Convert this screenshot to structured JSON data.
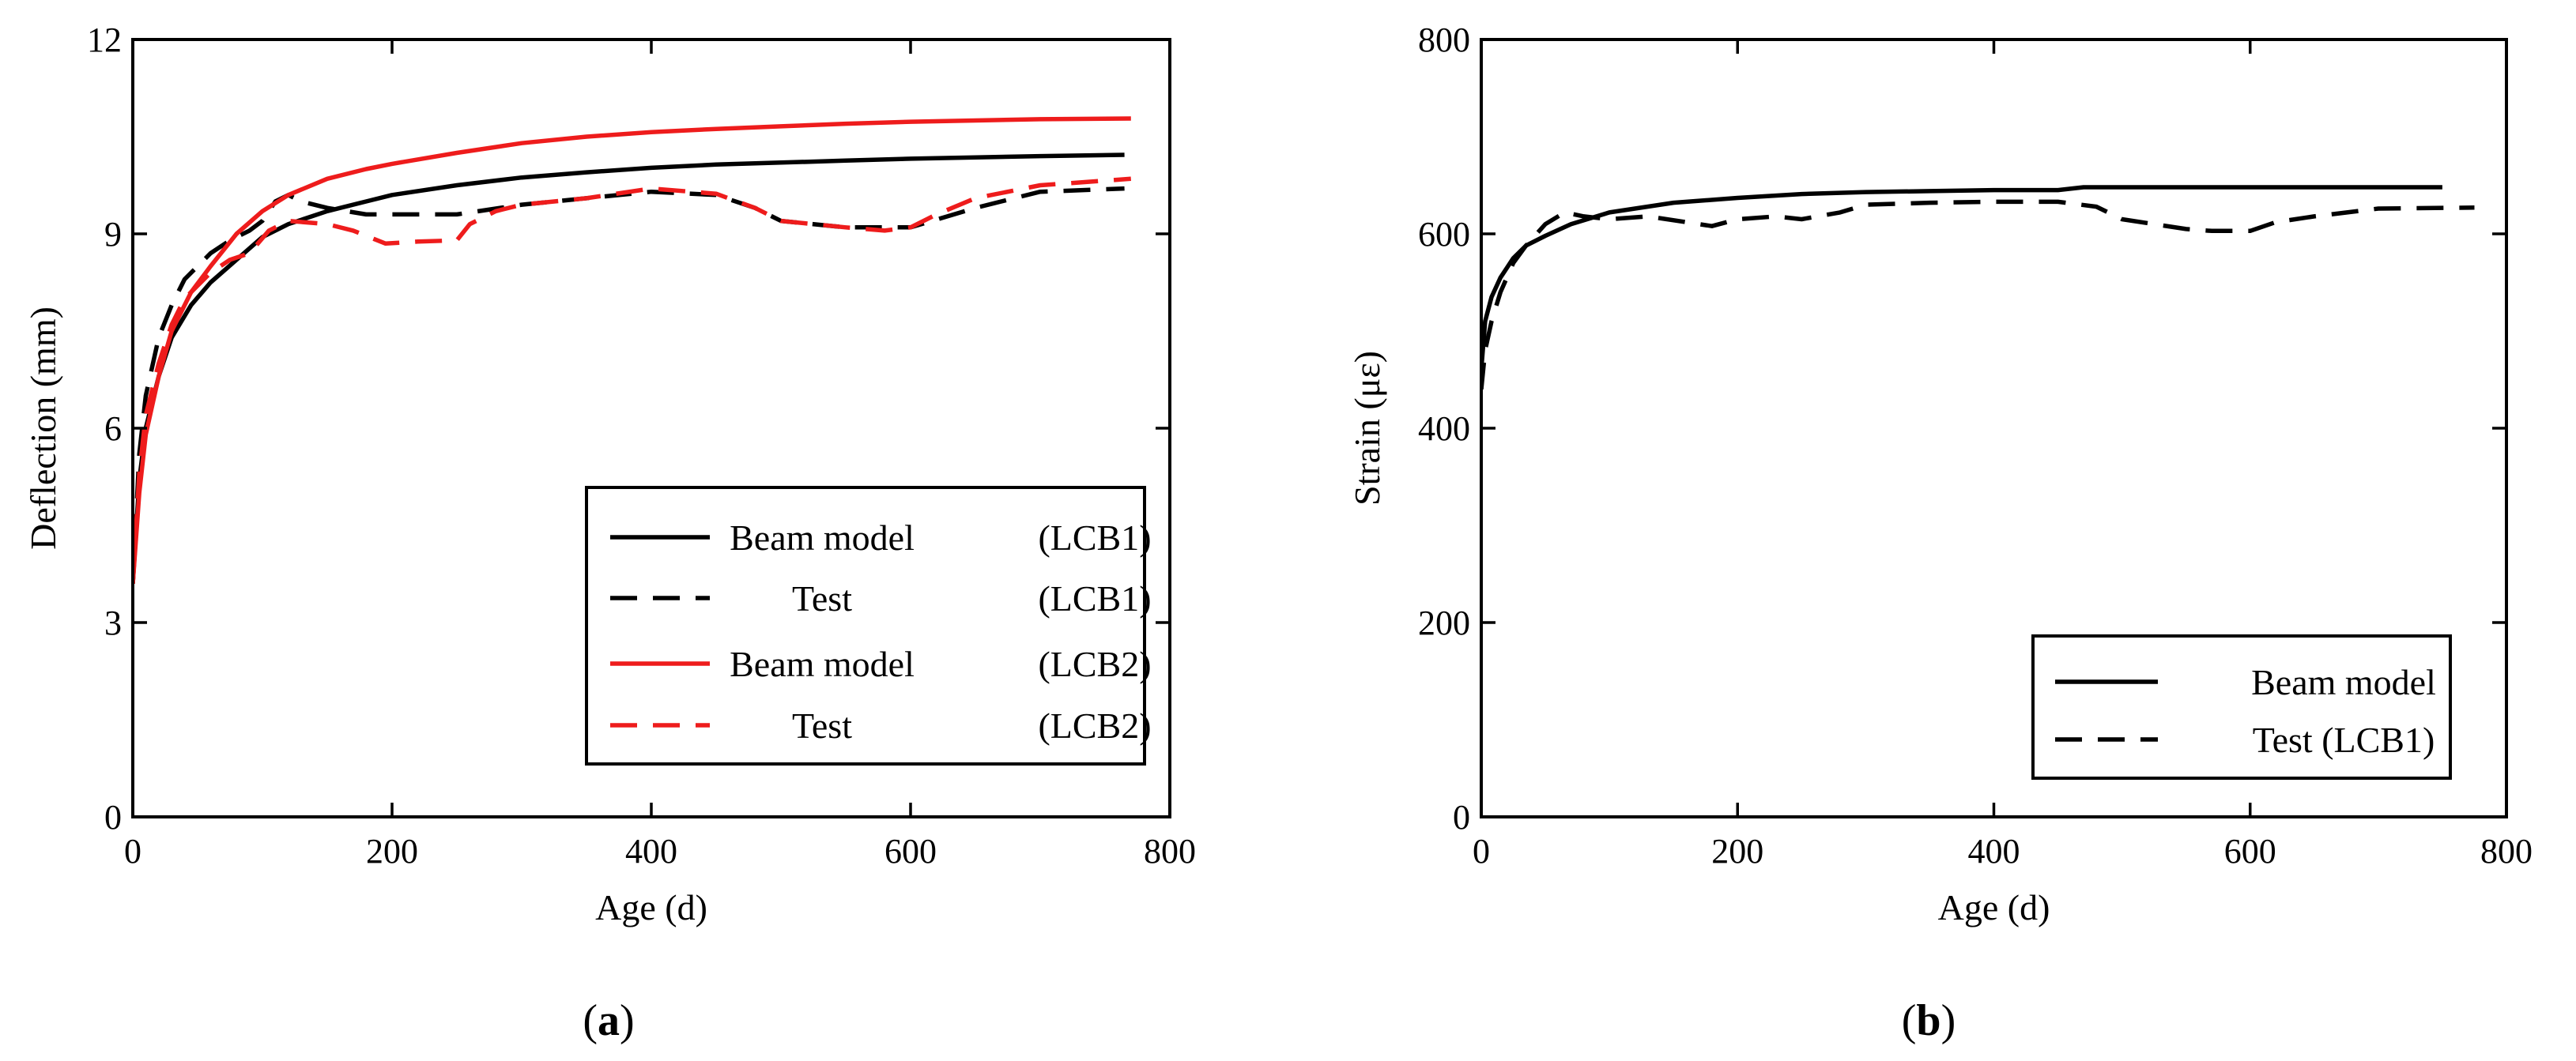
{
  "chart_data": [
    {
      "panel": "a",
      "type": "line",
      "caption": "(a)",
      "caption_letter": "a",
      "xlabel": "Age (d)",
      "ylabel": "Deflection (mm)",
      "xlim": [
        0,
        800
      ],
      "ylim": [
        0,
        12
      ],
      "xticks": [
        0,
        200,
        400,
        600,
        800
      ],
      "yticks": [
        0,
        3,
        6,
        9,
        12
      ],
      "legend_position": "lower-right",
      "series": [
        {
          "name": "Beam model (LCB1)",
          "legend_left": "Beam model",
          "legend_right": "(LCB1)",
          "color": "#000000",
          "dash": "solid",
          "x": [
            0,
            5,
            10,
            20,
            30,
            45,
            60,
            80,
            100,
            120,
            150,
            180,
            200,
            250,
            300,
            350,
            400,
            450,
            500,
            550,
            600,
            650,
            700,
            765
          ],
          "y": [
            3.6,
            5.2,
            6.0,
            6.8,
            7.4,
            7.9,
            8.25,
            8.6,
            8.95,
            9.15,
            9.35,
            9.5,
            9.6,
            9.75,
            9.87,
            9.95,
            10.02,
            10.07,
            10.1,
            10.13,
            10.16,
            10.18,
            10.2,
            10.22
          ]
        },
        {
          "name": "Test (LCB1)",
          "legend_left": "Test",
          "legend_right": "(LCB1)",
          "color": "#000000",
          "dash": "dashed",
          "x": [
            0,
            5,
            10,
            20,
            30,
            40,
            50,
            60,
            75,
            90,
            100,
            110,
            120,
            130,
            150,
            180,
            200,
            250,
            300,
            350,
            400,
            450,
            480,
            500,
            550,
            600,
            650,
            700,
            765
          ],
          "y": [
            3.6,
            5.6,
            6.5,
            7.4,
            7.9,
            8.3,
            8.5,
            8.7,
            8.9,
            9.05,
            9.2,
            9.5,
            9.6,
            9.5,
            9.4,
            9.3,
            9.3,
            9.3,
            9.45,
            9.55,
            9.65,
            9.6,
            9.4,
            9.2,
            9.1,
            9.1,
            9.4,
            9.65,
            9.7
          ]
        },
        {
          "name": "Beam model (LCB2)",
          "legend_left": "Beam model",
          "legend_right": "(LCB2)",
          "color": "#ee1c1c",
          "dash": "solid",
          "x": [
            0,
            5,
            10,
            20,
            30,
            45,
            60,
            80,
            100,
            120,
            150,
            180,
            200,
            250,
            300,
            350,
            400,
            450,
            500,
            550,
            600,
            650,
            700,
            770
          ],
          "y": [
            3.6,
            5.0,
            5.9,
            6.8,
            7.5,
            8.1,
            8.5,
            9.0,
            9.35,
            9.6,
            9.85,
            10.0,
            10.08,
            10.25,
            10.4,
            10.5,
            10.57,
            10.62,
            10.66,
            10.7,
            10.73,
            10.75,
            10.77,
            10.78
          ]
        },
        {
          "name": "Test (LCB2)",
          "legend_left": "Test",
          "legend_right": "(LCB2)",
          "color": "#ee1c1c",
          "dash": "dashed",
          "x": [
            0,
            5,
            10,
            20,
            30,
            40,
            50,
            60,
            75,
            90,
            105,
            120,
            150,
            170,
            195,
            220,
            250,
            260,
            280,
            300,
            350,
            400,
            450,
            480,
            500,
            550,
            580,
            600,
            620,
            650,
            700,
            770
          ],
          "y": [
            3.6,
            5.3,
            6.2,
            7.0,
            7.6,
            8.0,
            8.2,
            8.4,
            8.6,
            8.7,
            9.05,
            9.2,
            9.15,
            9.05,
            8.85,
            8.88,
            8.9,
            9.15,
            9.35,
            9.45,
            9.55,
            9.7,
            9.62,
            9.4,
            9.2,
            9.1,
            9.05,
            9.1,
            9.3,
            9.55,
            9.75,
            9.85
          ]
        }
      ]
    },
    {
      "panel": "b",
      "type": "line",
      "caption": "(b)",
      "caption_letter": "b",
      "xlabel": "Age (d)",
      "ylabel": "Strain (με)",
      "xlim": [
        0,
        800
      ],
      "ylim": [
        0,
        800
      ],
      "xticks": [
        0,
        200,
        400,
        600,
        800
      ],
      "yticks": [
        0,
        200,
        400,
        600,
        800
      ],
      "legend_position": "lower-right",
      "series": [
        {
          "name": "Beam model",
          "legend_left": "Beam model",
          "legend_right": "",
          "color": "#000000",
          "dash": "solid",
          "x": [
            0,
            3,
            8,
            15,
            25,
            35,
            50,
            70,
            100,
            150,
            200,
            250,
            300,
            350,
            400,
            450,
            470,
            500,
            600,
            700,
            750
          ],
          "y": [
            460,
            510,
            535,
            555,
            575,
            588,
            598,
            610,
            622,
            632,
            637,
            641,
            643,
            644,
            645,
            645,
            648,
            648,
            648,
            648,
            648
          ]
        },
        {
          "name": "Test (LCB1)",
          "legend_left": "Test",
          "legend_right": "(LCB1)",
          "color": "#000000",
          "dash": "dashed",
          "x": [
            0,
            3,
            8,
            15,
            25,
            35,
            50,
            65,
            80,
            100,
            130,
            160,
            180,
            200,
            230,
            250,
            280,
            300,
            350,
            400,
            450,
            480,
            500,
            550,
            570,
            600,
            620,
            650,
            700,
            775
          ],
          "y": [
            440,
            480,
            510,
            540,
            570,
            588,
            610,
            622,
            618,
            615,
            618,
            612,
            608,
            615,
            618,
            615,
            622,
            630,
            632,
            633,
            633,
            628,
            615,
            605,
            603,
            603,
            612,
            618,
            626,
            627
          ]
        }
      ]
    }
  ]
}
